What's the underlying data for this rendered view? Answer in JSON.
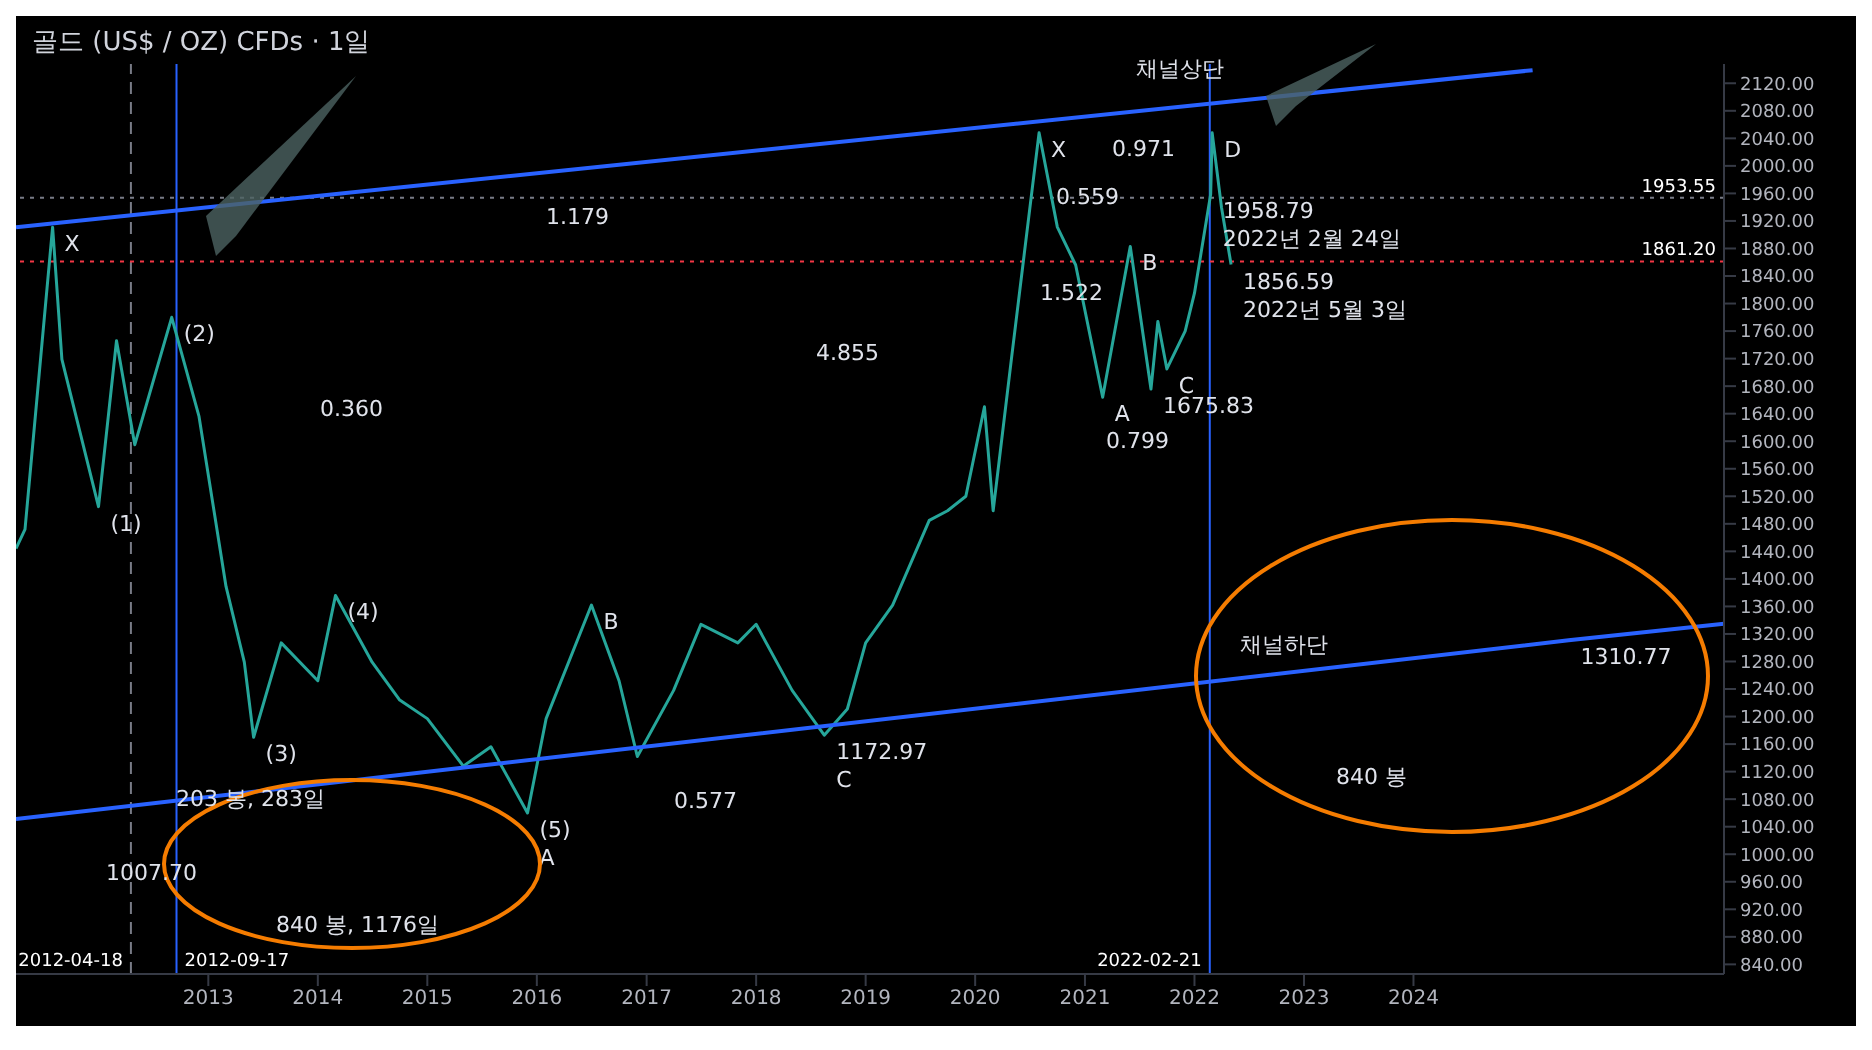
{
  "chart_data": {
    "type": "line",
    "title": "골드 (US$ / OZ) CFDs · 1일",
    "series": [
      {
        "type": "line",
        "color": "#26a69a",
        "x": [
          "2011-04",
          "2011-05",
          "2011-08",
          "2011-09",
          "2012-01",
          "2012-03",
          "2012-05",
          "2012-09",
          "2012-12",
          "2013-03",
          "2013-05",
          "2013-06",
          "2013-09",
          "2014-01",
          "2014-03",
          "2014-07",
          "2014-10",
          "2015-01",
          "2015-05",
          "2015-08",
          "2015-12",
          "2016-02",
          "2016-07",
          "2016-10",
          "2016-12",
          "2017-04",
          "2017-07",
          "2017-11",
          "2018-01",
          "2018-05",
          "2018-08-16",
          "2018-11",
          "2019-01",
          "2019-04",
          "2019-08",
          "2019-10",
          "2019-12",
          "2020-02",
          "2020-03",
          "2020-05",
          "2020-08",
          "2020-10",
          "2020-12",
          "2021-03",
          "2021-06",
          "2021-08-09",
          "2021-09",
          "2021-10",
          "2021-12",
          "2022-01",
          "2022-02-24",
          "2022-03",
          "2022-04",
          "2022-05-03"
        ],
        "values": [
          1444,
          1472,
          1911,
          1719,
          1505,
          1746,
          1595,
          1780,
          1636,
          1389,
          1279,
          1170,
          1307,
          1252,
          1376,
          1279,
          1224,
          1197,
          1128,
          1156,
          1060,
          1197,
          1362,
          1252,
          1142,
          1238,
          1334,
          1307,
          1334,
          1238,
          1172.97,
          1211,
          1307,
          1362,
          1485,
          1499,
          1520,
          1650,
          1499,
          1720,
          2048,
          1911,
          1856,
          1664,
          1883,
          1675.83,
          1774,
          1705,
          1760,
          1815,
          1958.79,
          2048,
          1940,
          1856.59
        ]
      },
      {
        "type": "line",
        "color": "#2962ff",
        "x": [
          "2011-04",
          "2025-02"
        ],
        "values": [
          1911,
          2139
        ]
      },
      {
        "type": "line",
        "color": "#2962ff",
        "x": [
          "2011-04",
          "2025-06",
          "2026-11"
        ],
        "values": [
          1051,
          1310.77,
          1335
        ]
      }
    ],
    "xlim": [
      "2011-04",
      "2026-11"
    ],
    "xticks": [
      {
        "value": "2013",
        "label": "2013"
      },
      {
        "value": "2014",
        "label": "2014"
      },
      {
        "value": "2015",
        "label": "2015"
      },
      {
        "value": "2016",
        "label": "2016"
      },
      {
        "value": "2017",
        "label": "2017"
      },
      {
        "value": "2018",
        "label": "2018"
      },
      {
        "value": "2019",
        "label": "2019"
      },
      {
        "value": "2020",
        "label": "2020"
      },
      {
        "value": "2021",
        "label": "2021"
      },
      {
        "value": "2022",
        "label": "2022"
      },
      {
        "value": "2023",
        "label": "2023"
      },
      {
        "value": "2024",
        "label": "2024"
      }
    ],
    "ylim": [
      826,
      2148
    ],
    "yticks": [
      {
        "value": 840,
        "label": "840.00"
      },
      {
        "value": 880,
        "label": "880.00"
      },
      {
        "value": 920,
        "label": "920.00"
      },
      {
        "value": 960,
        "label": "960.00"
      },
      {
        "value": 1000,
        "label": "1000.00"
      },
      {
        "value": 1040,
        "label": "1040.00"
      },
      {
        "value": 1080,
        "label": "1080.00"
      },
      {
        "value": 1120,
        "label": "1120.00"
      },
      {
        "value": 1160,
        "label": "1160.00"
      },
      {
        "value": 1200,
        "label": "1200.00"
      },
      {
        "value": 1240,
        "label": "1240.00"
      },
      {
        "value": 1280,
        "label": "1280.00"
      },
      {
        "value": 1320,
        "label": "1320.00"
      },
      {
        "value": 1360,
        "label": "1360.00"
      },
      {
        "value": 1400,
        "label": "1400.00"
      },
      {
        "value": 1440,
        "label": "1440.00"
      },
      {
        "value": 1480,
        "label": "1480.00"
      },
      {
        "value": 1520,
        "label": "1520.00"
      },
      {
        "value": 1560,
        "label": "1560.00"
      },
      {
        "value": 1600,
        "label": "1600.00"
      },
      {
        "value": 1640,
        "label": "1640.00"
      },
      {
        "value": 1680,
        "label": "1680.00"
      },
      {
        "value": 1720,
        "label": "1720.00"
      },
      {
        "value": 1760,
        "label": "1760.00"
      },
      {
        "value": 1800,
        "label": "1800.00"
      },
      {
        "value": 1840,
        "label": "1840.00"
      },
      {
        "value": 1880,
        "label": "1880.00"
      },
      {
        "value": 1920,
        "label": "1920.00"
      },
      {
        "value": 1960,
        "label": "1960.00"
      },
      {
        "value": 2000,
        "label": "2000.00"
      },
      {
        "value": 2040,
        "label": "2040.00"
      },
      {
        "value": 2080,
        "label": "2080.00"
      },
      {
        "value": 2120,
        "label": "2120.00"
      }
    ],
    "ref_lines": [
      {
        "axis": "x",
        "value": "2012-04-18",
        "label": "2012-04-18",
        "color": "#787b86",
        "line_style": "dashed"
      },
      {
        "axis": "x",
        "value": "2012-09-17",
        "label": "2012-09-17",
        "color": "#2962ff",
        "line_style": "solid"
      },
      {
        "axis": "x",
        "value": "2022-02-21",
        "label": "2022-02-21",
        "color": "#2962ff",
        "line_style": "solid"
      },
      {
        "axis": "y",
        "value": 1953.55,
        "label": "1953.55",
        "color": "#787b86",
        "line_style": "dotted"
      },
      {
        "axis": "y",
        "value": 1861.2,
        "label": "1861.20",
        "color": "#f23645",
        "line_style": "dotted"
      }
    ],
    "annotations": [
      "1007.70",
      "채널상단",
      "채널하단",
      "0.360",
      "4.855",
      "0.577",
      "1.179",
      "0.559",
      "0.971",
      "1.522",
      "0.799",
      "203 봉, 283일",
      "840 봉, 1176일",
      "840 봉",
      {
        "text": "1958.79",
        "x": "2022-02-24",
        "y": 1958.79
      },
      {
        "text": "2022년 2월 24일",
        "x": "2022-02-24",
        "y": 1958.79
      },
      {
        "text": "1856.59",
        "x": "2022-05-03",
        "y": 1856.59
      },
      {
        "text": "2022년 5월 3일",
        "x": "2022-05-03",
        "y": 1856.59
      },
      {
        "text": "1675.83",
        "x": "2021-08-09",
        "y": 1675.83
      },
      {
        "text": "1172.97",
        "x": "2018-08-16",
        "y": 1172.97
      },
      {
        "text": "C",
        "x": "2018-08-16",
        "y": 1172.97
      },
      {
        "text": "1310.77",
        "x": "2025-06",
        "y": 1310.77
      },
      {
        "text": "(1)",
        "x": "2012-01",
        "y": 1505
      },
      {
        "text": "(2)",
        "x": "2012-09",
        "y": 1780
      },
      {
        "text": "(3)",
        "x": "2013-06",
        "y": 1170
      },
      {
        "text": "(4)",
        "x": "2014-03",
        "y": 1376
      },
      {
        "text": "(5)",
        "x": "2015-12",
        "y": 1060
      },
      {
        "text": "A",
        "x": "2015-12",
        "y": 1060
      },
      {
        "text": "X",
        "x": "2011-08",
        "y": 1911
      },
      {
        "text": "B",
        "x": "2016-07",
        "y": 1362
      },
      {
        "text": "X",
        "x": "2020-08",
        "y": 2048
      },
      {
        "text": "A",
        "x": "2021-03",
        "y": 1664
      },
      {
        "text": "B",
        "x": "2021-06",
        "y": 1883
      },
      {
        "text": "C",
        "x": "2021-10",
        "y": 1705
      },
      {
        "text": "D",
        "x": "2022-03",
        "y": 2048
      }
    ],
    "grid": false,
    "legend": false
  }
}
